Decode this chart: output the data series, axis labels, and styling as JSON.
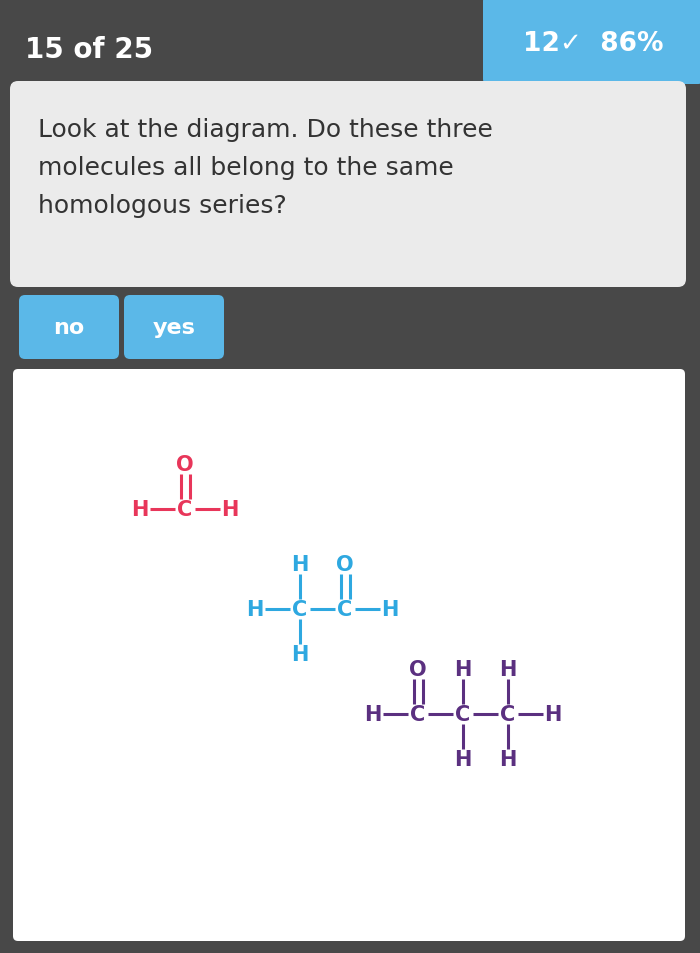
{
  "bg_color": "#484848",
  "header_text": "15 of 25",
  "header_text_color": "#ffffff",
  "badge_bg": "#5bb8e8",
  "badge_text": "12✓  86%",
  "badge_text_color": "#ffffff",
  "question_bg": "#ebebeb",
  "question_text": "Look at the diagram. Do these three\nmolecules all belong to the same\nhomologous series?",
  "question_text_color": "#333333",
  "button_bg": "#5bb8e8",
  "button_text_color": "#ffffff",
  "buttons": [
    "no",
    "yes"
  ],
  "diagram_bg": "#ffffff",
  "mol1_color": "#e8365a",
  "mol2_color": "#2ea8e0",
  "mol3_color": "#5b3080"
}
